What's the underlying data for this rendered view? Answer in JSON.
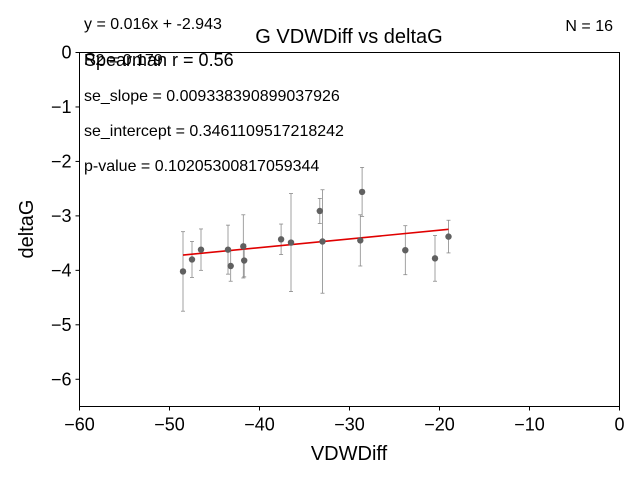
{
  "chart_data": {
    "type": "scatter",
    "title": "G VDWDiff vs deltaG",
    "xlabel": "VDWDiff",
    "ylabel": "deltaG",
    "xlim": [
      -60,
      0
    ],
    "ylim": [
      -6.5,
      0
    ],
    "xticks": [
      -60,
      -50,
      -40,
      -30,
      -20,
      -10,
      0
    ],
    "yticks": [
      0,
      -1,
      -2,
      -3,
      -4,
      -5,
      -6
    ],
    "xtick_labels": [
      "−60",
      "−50",
      "−40",
      "−30",
      "−20",
      "−10",
      "0"
    ],
    "ytick_labels": [
      "0",
      "−1",
      "−2",
      "−3",
      "−4",
      "−5",
      "−6"
    ],
    "grid": false,
    "points": [
      {
        "x": -48.5,
        "y": -4.02,
        "err": 0.73
      },
      {
        "x": -47.5,
        "y": -3.8,
        "err": 0.33
      },
      {
        "x": -46.5,
        "y": -3.62,
        "err": 0.38
      },
      {
        "x": -43.5,
        "y": -3.62,
        "err": 0.45
      },
      {
        "x": -43.2,
        "y": -3.92,
        "err": 0.28
      },
      {
        "x": -41.8,
        "y": -3.56,
        "err": 0.58
      },
      {
        "x": -41.7,
        "y": -3.82,
        "err": 0.3
      },
      {
        "x": -37.6,
        "y": -3.43,
        "err": 0.28
      },
      {
        "x": -36.5,
        "y": -3.49,
        "err": 0.9
      },
      {
        "x": -33.3,
        "y": -2.91,
        "err": 0.23
      },
      {
        "x": -33.0,
        "y": -3.47,
        "err": 0.95
      },
      {
        "x": -28.8,
        "y": -3.45,
        "err": 0.47
      },
      {
        "x": -28.6,
        "y": -2.56,
        "err": 0.45
      },
      {
        "x": -23.8,
        "y": -3.63,
        "err": 0.45
      },
      {
        "x": -20.5,
        "y": -3.78,
        "err": 0.42
      },
      {
        "x": -19.0,
        "y": -3.38,
        "err": 0.3
      }
    ],
    "fit_line": {
      "slope": 0.016,
      "intercept": -2.943,
      "x_range": [
        -48.5,
        -19.0
      ]
    },
    "marker_color": "#606060",
    "errorbar_color": "#8a8a8a",
    "fit_color": "#e00000"
  },
  "annotations": {
    "equation": "y = 0.016x + -2.943",
    "r2": "R2 = 0.179",
    "spearman": "Spearman r = 0.56",
    "se_slope": "se_slope = 0.009338390899037926",
    "se_intercept": "se_intercept = 0.3461109517218242",
    "p_value": "p-value = 0.10205300817059344",
    "n": "N = 16"
  }
}
